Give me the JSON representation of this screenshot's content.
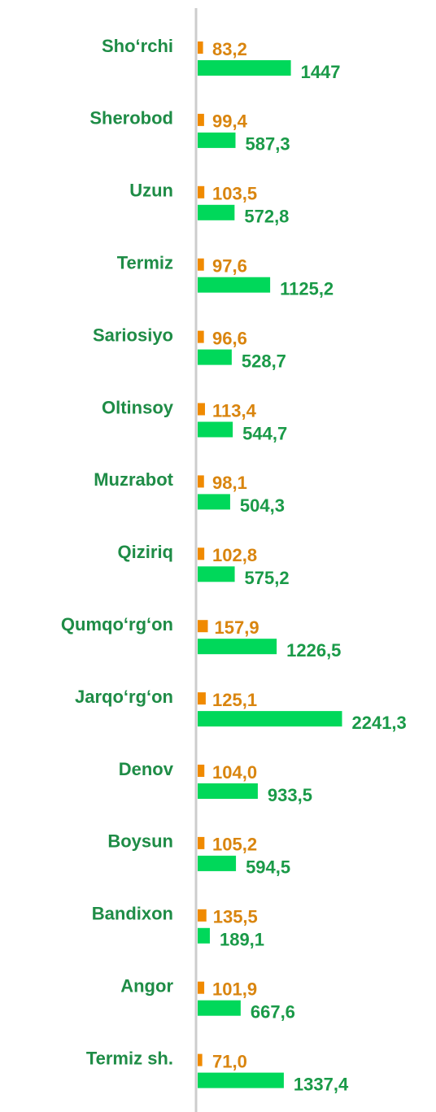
{
  "chart_data": {
    "type": "bar",
    "orientation": "horizontal",
    "categories": [
      "Sho‘rchi",
      "Sherobod",
      "Uzun",
      "Termiz",
      "Sariosiyo",
      "Oltinsoy",
      "Muzrabot",
      "Qiziriq",
      "Qumqo‘rg‘on",
      "Jarqo‘rg‘on",
      "Denov",
      "Boysun",
      "Bandixon",
      "Angor",
      "Termiz sh."
    ],
    "series": [
      {
        "color": "#f08a00",
        "label_color": "#d9850f",
        "values": [
          83.2,
          99.4,
          103.5,
          97.6,
          96.6,
          113.4,
          98.1,
          102.8,
          157.9,
          125.1,
          104.0,
          105.2,
          135.5,
          101.9,
          71.0
        ],
        "value_labels": [
          "83,2",
          "99,4",
          "103,5",
          "97,6",
          "96,6",
          "113,4",
          "98,1",
          "102,8",
          "157,9",
          "125,1",
          "104,0",
          "105,2",
          "135,5",
          "101,9",
          "71,0"
        ]
      },
      {
        "color": "#00d85a",
        "label_color": "#1a9a48",
        "values": [
          1447,
          587.3,
          572.8,
          1125.2,
          528.7,
          544.7,
          504.3,
          575.2,
          1226.5,
          2241.3,
          933.5,
          594.5,
          189.1,
          667.6,
          1337.4
        ],
        "value_labels": [
          "1447",
          "587,3",
          "572,8",
          "1125,2",
          "528,7",
          "544,7",
          "504,3",
          "575,2",
          "1226,5",
          "2241,3",
          "933,5",
          "594,5",
          "189,1",
          "667,6",
          "1337,4"
        ]
      }
    ],
    "xlim": [
      0,
      3700
    ],
    "category_color": "#1e8c46"
  }
}
